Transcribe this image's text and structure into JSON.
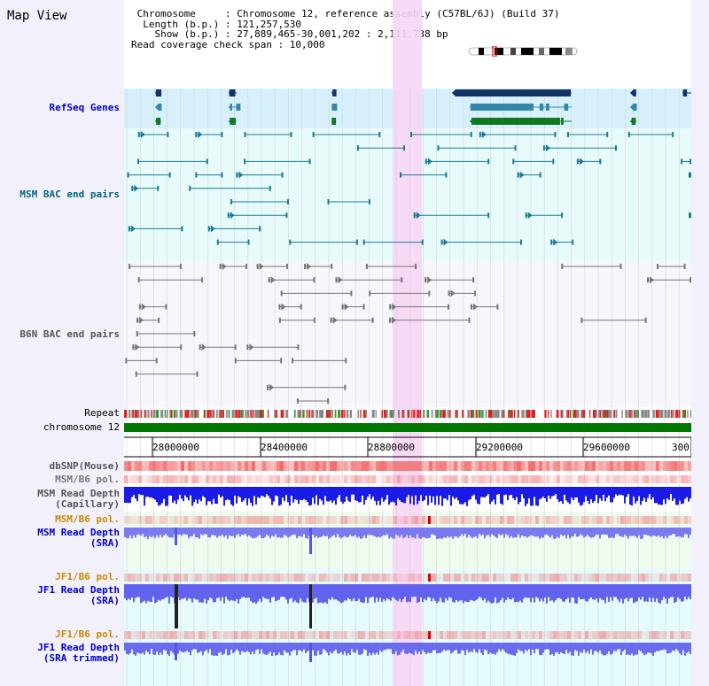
{
  "title": "Map View",
  "header": {
    "chromosome": " Chromosome     : Chromosome 12, reference assembly (C57BL/6J) (Build 37)",
    "length": "  Length (b.p.) : 121,257,530",
    "show": "    Show (b.p.) : 27,889,465-30,001,202 : 2,111,738 bp",
    "coverage": "Read coverage check span : 10,000"
  },
  "tracks": {
    "refseq": "RefSeq Genes",
    "msm_bac": "MSM BAC end pairs",
    "b6n_bac": "B6N BAC end pairs",
    "repeat": "Repeat",
    "chromosome": "chromosome 12",
    "dbsnp": "dbSNP(Mouse)",
    "msm_b6_pol_1": "MSM/B6 pol.",
    "msm_read_depth_cap": "MSM Read Depth\n(Capillary)",
    "msm_b6_pol_2": "MSM/B6 pol.",
    "msm_read_depth_sra": "MSM Read Depth\n(SRA)",
    "jf1_b6_pol_1": "JF1/B6 pol.",
    "jf1_read_depth_sra": "JF1 Read Depth\n(SRA)",
    "jf1_b6_pol_2": "JF1/B6 pol.",
    "jf1_read_depth_trim": "JF1 Read Depth\n(SRA trimmed)"
  },
  "ruler": {
    "ticks": [
      "28000000",
      "28400000",
      "28800000",
      "29200000",
      "29600000",
      "300"
    ]
  },
  "colors": {
    "track_label_blue": "#0000cc",
    "track_label_teal": "#006688",
    "track_label_gray": "#555555",
    "track_label_orange": "#cc8800",
    "highlight_pink": "#f5d7f5",
    "refseq_bg": "#d7f0fb",
    "bac_bg": "#e8fbfb",
    "depth_blue": "#1818ee",
    "chromosome_green": "#007700"
  }
}
